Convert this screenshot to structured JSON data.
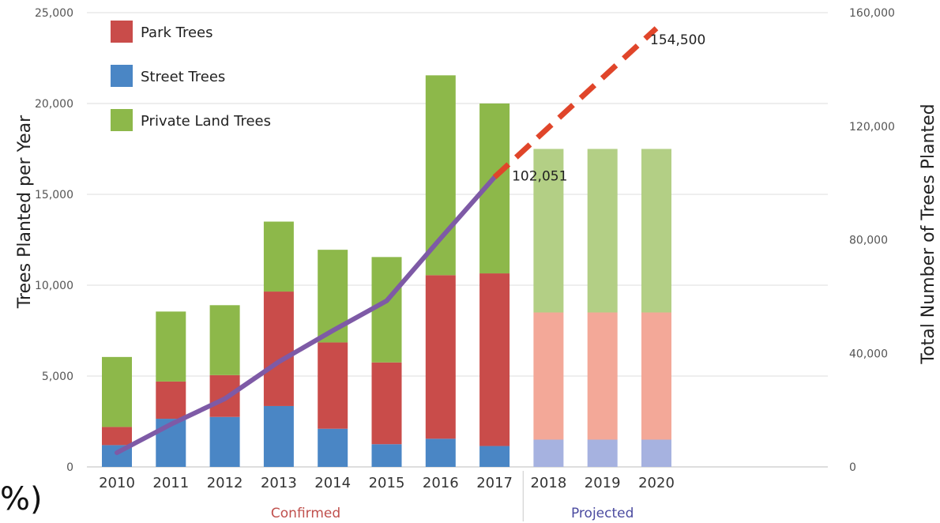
{
  "chart_data": {
    "type": "bar",
    "categories": [
      "2010",
      "2011",
      "2012",
      "2013",
      "2014",
      "2015",
      "2016",
      "2017",
      "2018",
      "2019",
      "2020"
    ],
    "series": [
      {
        "name": "Street Trees",
        "color": "#4a86c5",
        "projected_color": "#a6b2e0",
        "values": [
          1200,
          2650,
          2750,
          3350,
          2100,
          1250,
          1550,
          1150,
          1500,
          1500,
          1500
        ]
      },
      {
        "name": "Park Trees",
        "color": "#c94c4a",
        "projected_color": "#f3a898",
        "values": [
          1000,
          2050,
          2300,
          6300,
          4750,
          4500,
          9000,
          9500,
          7000,
          7000,
          7000
        ]
      },
      {
        "name": "Private Land Trees",
        "color": "#8db84a",
        "projected_color": "#b3cf85",
        "values": [
          3850,
          3850,
          3850,
          3850,
          5100,
          5800,
          11000,
          9350,
          9000,
          9000,
          9000
        ]
      }
    ],
    "cumulative": {
      "confirmed": {
        "x": [
          "2010",
          "2011",
          "2012",
          "2013",
          "2014",
          "2015",
          "2016",
          "2017"
        ],
        "y": [
          5000,
          15000,
          24000,
          37000,
          48000,
          58500,
          80500,
          102051
        ],
        "color": "#7e5aa6"
      },
      "projected": {
        "x": [
          "2017",
          "2020"
        ],
        "y": [
          102051,
          154500
        ],
        "color": "#e0452a"
      }
    },
    "ylabel_left": "Trees Planted per Year",
    "ylabel_right": "Total Number of Trees Planted",
    "ylim_left": [
      0,
      25000
    ],
    "ylim_right": [
      0,
      160000
    ],
    "left_ticks": [
      "0",
      "5,000",
      "10,000",
      "15,000",
      "20,000",
      "25,000"
    ],
    "right_ticks": [
      "0",
      "40,000",
      "80,000",
      "120,000",
      "160,000"
    ],
    "annotations": [
      {
        "text": "102,051",
        "x": "2017",
        "y": 102051
      },
      {
        "text": "154,500",
        "x": "2020",
        "y": 154500
      }
    ],
    "groups": [
      {
        "label": "Confirmed",
        "color": "#c0504d"
      },
      {
        "label": "Projected",
        "color": "#4b4ba0"
      }
    ],
    "legend": {
      "placement": "top-left"
    },
    "grid": true
  },
  "fragment_text": "%)"
}
